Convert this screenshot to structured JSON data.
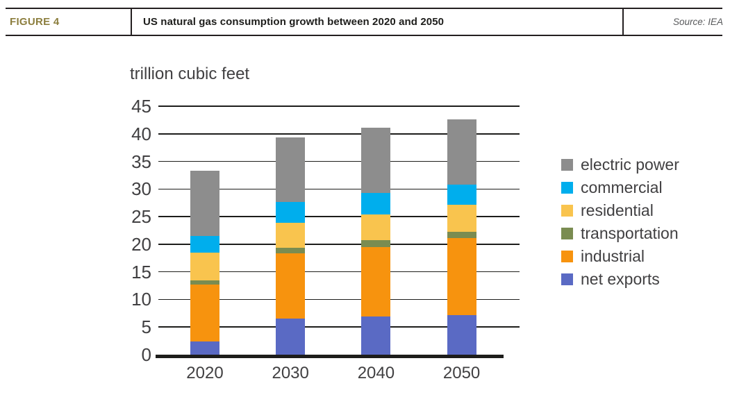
{
  "header": {
    "figure_label": "FIGURE 4",
    "title": "US natural gas consumption growth between 2020 and 2050",
    "source": "Source: IEA",
    "accent_color": "#8C7E3E"
  },
  "chart_data": {
    "type": "bar",
    "stacked": true,
    "title": "US natural gas consumption growth between 2020 and 2050",
    "ylabel": "trillion cubic feet",
    "xlabel": "",
    "categories": [
      "2020",
      "2030",
      "2040",
      "2050"
    ],
    "series": [
      {
        "name": "net exports",
        "color": "#5A6AC4",
        "values": [
          2.4,
          6.5,
          6.9,
          7.2
        ]
      },
      {
        "name": "industrial",
        "color": "#F7930E",
        "values": [
          10.3,
          11.8,
          12.6,
          13.9
        ]
      },
      {
        "name": "transportation",
        "color": "#7A8C51",
        "values": [
          0.75,
          1.0,
          1.2,
          1.2
        ]
      },
      {
        "name": "residential",
        "color": "#F9C44E",
        "values": [
          5.0,
          4.6,
          4.7,
          4.9
        ]
      },
      {
        "name": "commercial",
        "color": "#00AEED",
        "values": [
          3.0,
          3.7,
          3.9,
          3.6
        ]
      },
      {
        "name": "electric power",
        "color": "#8D8D8D",
        "values": [
          11.9,
          11.8,
          11.8,
          11.8
        ]
      }
    ],
    "totals": [
      33.4,
      39.4,
      41.1,
      42.6
    ],
    "ylim": [
      0,
      45
    ],
    "yticks": [
      0,
      5,
      10,
      15,
      20,
      25,
      30,
      35,
      40,
      45
    ],
    "grid": true,
    "legend_position": "right",
    "legend_order": [
      "electric power",
      "commercial",
      "residential",
      "transportation",
      "industrial",
      "net exports"
    ],
    "colors": {
      "text": "#414042",
      "grid": "#1d1d1b"
    }
  }
}
